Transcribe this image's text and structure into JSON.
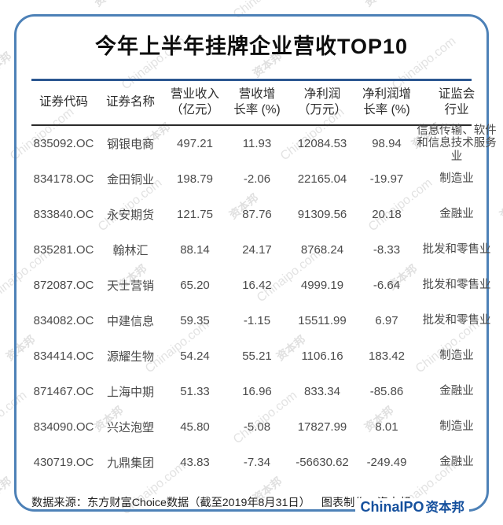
{
  "title": "今年上半年挂牌企业营收TOP10",
  "watermark": {
    "text1": "Chinaipo.com",
    "text2": "资本邦"
  },
  "colors": {
    "frame_border": "#4d81b7",
    "table_top_rule": "#2c5791",
    "header_divider": "#2b2b2b",
    "logo_blue": "#15509d",
    "watermark_gray": "#c7c7c7"
  },
  "table": {
    "headers": [
      {
        "line1": "证券代码",
        "line2": ""
      },
      {
        "line1": "证券名称",
        "line2": ""
      },
      {
        "line1": "营业收入",
        "line2": "（亿元）"
      },
      {
        "line1": "营收增",
        "line2": "长率 (%)"
      },
      {
        "line1": "净利润",
        "line2": "（万元）"
      },
      {
        "line1": "净利润增",
        "line2": "长率 (%)"
      },
      {
        "line1": "证监会",
        "line2": "行业"
      }
    ],
    "rows": [
      {
        "code": "835092.OC",
        "name": "钢银电商",
        "revenue": "497.21",
        "revenue_growth": "11.93",
        "profit": "12084.53",
        "profit_growth": "98.94",
        "industry": "信息传输、软件和信息技术服务业"
      },
      {
        "code": "834178.OC",
        "name": "金田铜业",
        "revenue": "198.79",
        "revenue_growth": "-2.06",
        "profit": "22165.04",
        "profit_growth": "-19.97",
        "industry": "制造业"
      },
      {
        "code": "833840.OC",
        "name": "永安期货",
        "revenue": "121.75",
        "revenue_growth": "87.76",
        "profit": "91309.56",
        "profit_growth": "20.18",
        "industry": "金融业"
      },
      {
        "code": "835281.OC",
        "name": "翰林汇",
        "revenue": "88.14",
        "revenue_growth": "24.17",
        "profit": "8768.24",
        "profit_growth": "-8.33",
        "industry": "批发和零售业"
      },
      {
        "code": "872087.OC",
        "name": "天士营销",
        "revenue": "65.20",
        "revenue_growth": "16.42",
        "profit": "4999.19",
        "profit_growth": "-6.64",
        "industry": "批发和零售业"
      },
      {
        "code": "834082.OC",
        "name": "中建信息",
        "revenue": "59.35",
        "revenue_growth": "-1.15",
        "profit": "15511.99",
        "profit_growth": "6.97",
        "industry": "批发和零售业"
      },
      {
        "code": "834414.OC",
        "name": "源耀生物",
        "revenue": "54.24",
        "revenue_growth": "55.21",
        "profit": "1106.16",
        "profit_growth": "183.42",
        "industry": "制造业"
      },
      {
        "code": "871467.OC",
        "name": "上海中期",
        "revenue": "51.33",
        "revenue_growth": "16.96",
        "profit": "833.34",
        "profit_growth": "-85.86",
        "industry": "金融业"
      },
      {
        "code": "834090.OC",
        "name": "兴达泡塑",
        "revenue": "45.80",
        "revenue_growth": "-5.08",
        "profit": "17827.99",
        "profit_growth": "8.01",
        "industry": "制造业"
      },
      {
        "code": "430719.OC",
        "name": "九鼎集团",
        "revenue": "43.83",
        "revenue_growth": "-7.34",
        "profit": "-56630.62",
        "profit_growth": "-249.49",
        "industry": "金融业"
      }
    ]
  },
  "footer": {
    "source": "数据来源：东方财富Choice数据（截至2019年8月31日）",
    "maker": "图表制作：资本邦",
    "logo_en": "ChinaIPO",
    "logo_cn": "资本邦"
  }
}
